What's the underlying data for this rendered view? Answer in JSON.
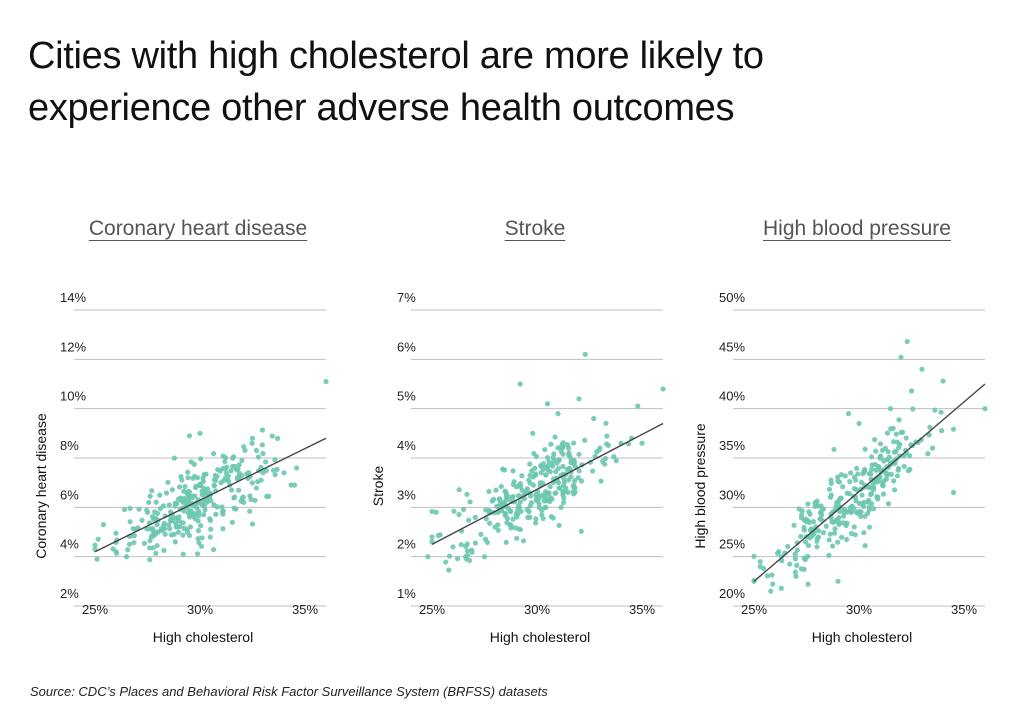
{
  "header": {
    "title_line1": "Cities with high cholesterol are more likely to",
    "title_line2": "experience other adverse health outcomes"
  },
  "footer": {
    "source": "Source:  CDC’s Places and Behavioral Risk Factor Surveillance System (BRFSS) datasets"
  },
  "colors": {
    "point": "#6cc7b0",
    "trend": "#444444",
    "grid": "#bfbfbf"
  },
  "chart_data": [
    {
      "type": "scatter",
      "title": "Coronary heart disease",
      "xlabel": "High cholesterol",
      "ylabel": "Coronary heart disease",
      "xlim": [
        24,
        36
      ],
      "ylim": [
        2,
        14
      ],
      "x_ticks": [
        25,
        30,
        35
      ],
      "x_tick_labels": [
        "25%",
        "30%",
        "35%"
      ],
      "y_ticks": [
        2,
        4,
        6,
        8,
        10,
        12,
        14
      ],
      "y_tick_labels": [
        "2%",
        "4%",
        "6%",
        "8%",
        "10%",
        "12%",
        "14%"
      ],
      "trend": {
        "x": [
          25,
          36
        ],
        "y": [
          4.2,
          8.8
        ]
      },
      "n_points": 300,
      "x_range": [
        25,
        36
      ],
      "points": [
        [
          25,
          4.3
        ],
        [
          25.1,
          3.9
        ],
        [
          25.4,
          5.3
        ],
        [
          26,
          4.2
        ],
        [
          26.5,
          4.0
        ],
        [
          27.5,
          5.8
        ],
        [
          28,
          5.0
        ],
        [
          29.2,
          4.1
        ],
        [
          29.5,
          8.9
        ],
        [
          30,
          9.0
        ],
        [
          30.3,
          6.3
        ],
        [
          31,
          7.0
        ],
        [
          31.5,
          6.7
        ],
        [
          32,
          7.9
        ],
        [
          32.5,
          8.8
        ],
        [
          33,
          7.4
        ],
        [
          33.5,
          7.5
        ],
        [
          34,
          7.4
        ],
        [
          34.5,
          6.9
        ],
        [
          36,
          11.1
        ]
      ]
    },
    {
      "type": "scatter",
      "title": "Stroke",
      "xlabel": "High cholesterol",
      "ylabel": "Stroke",
      "xlim": [
        24,
        36
      ],
      "ylim": [
        1,
        7
      ],
      "x_ticks": [
        25,
        30,
        35
      ],
      "x_tick_labels": [
        "25%",
        "30%",
        "35%"
      ],
      "y_ticks": [
        1,
        2,
        3,
        4,
        5,
        6,
        7
      ],
      "y_tick_labels": [
        "1%",
        "2%",
        "3%",
        "4%",
        "5%",
        "6%",
        "7%"
      ],
      "trend": {
        "x": [
          25,
          36
        ],
        "y": [
          2.25,
          4.7
        ]
      },
      "n_points": 300,
      "x_range": [
        25,
        36
      ],
      "points": [
        [
          24.8,
          2.0
        ],
        [
          25,
          2.4
        ],
        [
          25.2,
          2.9
        ],
        [
          26,
          2.2
        ],
        [
          26.6,
          2.0
        ],
        [
          27.5,
          2.0
        ],
        [
          28,
          2.6
        ],
        [
          29.2,
          5.5
        ],
        [
          29.8,
          4.5
        ],
        [
          30.5,
          5.1
        ],
        [
          31,
          4.9
        ],
        [
          31.5,
          4.2
        ],
        [
          32,
          5.2
        ],
        [
          32.3,
          6.1
        ],
        [
          32.7,
          4.8
        ],
        [
          33,
          4.2
        ],
        [
          34,
          4.3
        ],
        [
          34.5,
          4.4
        ],
        [
          35,
          4.3
        ],
        [
          36,
          5.4
        ]
      ]
    },
    {
      "type": "scatter",
      "title": "High blood pressure",
      "xlabel": "High cholesterol",
      "ylabel": "High blood pressure",
      "xlim": [
        24,
        36
      ],
      "ylim": [
        20,
        50
      ],
      "x_ticks": [
        25,
        30,
        35
      ],
      "x_tick_labels": [
        "25%",
        "30%",
        "35%"
      ],
      "y_ticks": [
        20,
        25,
        30,
        35,
        40,
        45,
        50
      ],
      "y_tick_labels": [
        "20%",
        "25%",
        "30%",
        "35%",
        "40%",
        "45%",
        "50%"
      ],
      "trend": {
        "x": [
          25,
          36
        ],
        "y": [
          22.5,
          42.5
        ]
      },
      "n_points": 300,
      "x_range": [
        25,
        36
      ],
      "points": [
        [
          25,
          22.5
        ],
        [
          25.3,
          24.5
        ],
        [
          25.8,
          21.5
        ],
        [
          26.3,
          21.8
        ],
        [
          27,
          23
        ],
        [
          28,
          26
        ],
        [
          29,
          22.5
        ],
        [
          29.5,
          39.5
        ],
        [
          30,
          38.5
        ],
        [
          30.5,
          28
        ],
        [
          31,
          35
        ],
        [
          31.5,
          40
        ],
        [
          32,
          45.2
        ],
        [
          32.3,
          46.8
        ],
        [
          32.5,
          41.8
        ],
        [
          33,
          44
        ],
        [
          33.5,
          36
        ],
        [
          34,
          42.8
        ],
        [
          34.5,
          31.5
        ],
        [
          36,
          40
        ]
      ]
    }
  ]
}
